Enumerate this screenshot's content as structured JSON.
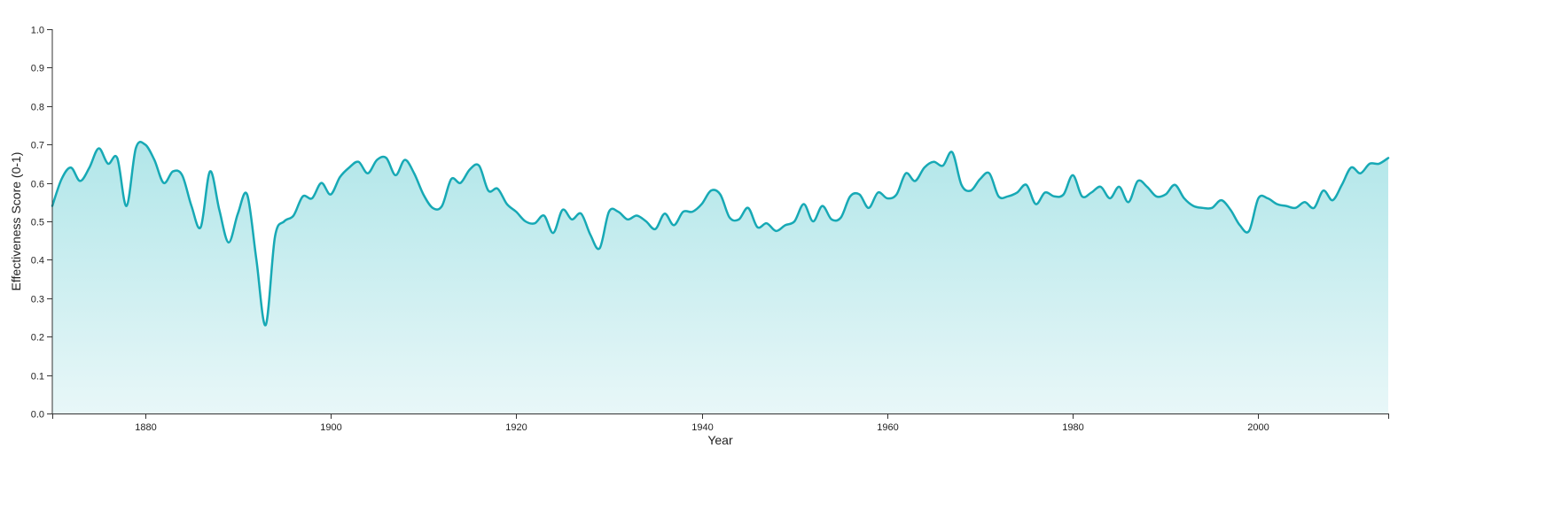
{
  "chart_data": {
    "type": "area",
    "title": "",
    "xlabel": "Year",
    "ylabel": "Effectiveness Score (0-1)",
    "xlim": [
      1870,
      2014
    ],
    "ylim": [
      0,
      1
    ],
    "x_ticks": [
      "1880",
      "1900",
      "1920",
      "1940",
      "1960",
      "1980",
      "2000"
    ],
    "y_ticks": [
      "0.0",
      "0.1",
      "0.2",
      "0.3",
      "0.4",
      "0.5",
      "0.6",
      "0.7",
      "0.8",
      "0.9",
      "1.0"
    ],
    "grid": false,
    "legend": "none",
    "colors": {
      "line": "#17a9b5",
      "fill_top": "#b1e6e9",
      "fill_bottom": "#e8f7f8",
      "axis": "#333333"
    },
    "series": [
      {
        "x": [
          1870,
          1871,
          1872,
          1873,
          1874,
          1875,
          1876,
          1877,
          1878,
          1879,
          1880,
          1881,
          1882,
          1883,
          1884,
          1885,
          1886,
          1887,
          1888,
          1889,
          1890,
          1891,
          1892,
          1893,
          1894,
          1895,
          1896,
          1897,
          1898,
          1899,
          1900,
          1901,
          1902,
          1903,
          1904,
          1905,
          1906,
          1907,
          1908,
          1909,
          1910,
          1911,
          1912,
          1913,
          1914,
          1915,
          1916,
          1917,
          1918,
          1919,
          1920,
          1921,
          1922,
          1923,
          1924,
          1925,
          1926,
          1927,
          1928,
          1929,
          1930,
          1931,
          1932,
          1933,
          1934,
          1935,
          1936,
          1937,
          1938,
          1939,
          1940,
          1941,
          1942,
          1943,
          1944,
          1945,
          1946,
          1947,
          1948,
          1949,
          1950,
          1951,
          1952,
          1953,
          1954,
          1955,
          1956,
          1957,
          1958,
          1959,
          1960,
          1961,
          1962,
          1963,
          1964,
          1965,
          1966,
          1967,
          1968,
          1969,
          1970,
          1971,
          1972,
          1973,
          1974,
          1975,
          1976,
          1977,
          1978,
          1979,
          1980,
          1981,
          1982,
          1983,
          1984,
          1985,
          1986,
          1987,
          1988,
          1989,
          1990,
          1991,
          1992,
          1993,
          1994,
          1995,
          1996,
          1997,
          1998,
          1999,
          2000,
          2001,
          2002,
          2003,
          2004,
          2005,
          2006,
          2007,
          2008,
          2009,
          2010,
          2011,
          2012,
          2013,
          2014
        ],
        "values": [
          0.54,
          0.61,
          0.64,
          0.605,
          0.64,
          0.69,
          0.65,
          0.665,
          0.54,
          0.69,
          0.7,
          0.66,
          0.6,
          0.63,
          0.62,
          0.54,
          0.485,
          0.63,
          0.53,
          0.445,
          0.52,
          0.57,
          0.4,
          0.23,
          0.46,
          0.5,
          0.515,
          0.565,
          0.56,
          0.6,
          0.57,
          0.615,
          0.64,
          0.655,
          0.625,
          0.66,
          0.665,
          0.62,
          0.66,
          0.625,
          0.57,
          0.535,
          0.54,
          0.61,
          0.6,
          0.635,
          0.645,
          0.58,
          0.585,
          0.545,
          0.525,
          0.5,
          0.495,
          0.515,
          0.47,
          0.53,
          0.505,
          0.52,
          0.465,
          0.43,
          0.525,
          0.525,
          0.505,
          0.515,
          0.5,
          0.48,
          0.52,
          0.49,
          0.525,
          0.525,
          0.545,
          0.58,
          0.57,
          0.51,
          0.505,
          0.535,
          0.485,
          0.495,
          0.475,
          0.49,
          0.5,
          0.545,
          0.5,
          0.54,
          0.505,
          0.51,
          0.565,
          0.57,
          0.535,
          0.575,
          0.56,
          0.57,
          0.625,
          0.605,
          0.64,
          0.655,
          0.645,
          0.68,
          0.595,
          0.58,
          0.61,
          0.625,
          0.565,
          0.565,
          0.575,
          0.595,
          0.545,
          0.575,
          0.565,
          0.57,
          0.62,
          0.565,
          0.575,
          0.59,
          0.56,
          0.59,
          0.55,
          0.605,
          0.59,
          0.565,
          0.57,
          0.595,
          0.56,
          0.54,
          0.535,
          0.535,
          0.555,
          0.53,
          0.49,
          0.475,
          0.56,
          0.56,
          0.545,
          0.54,
          0.535,
          0.55,
          0.535,
          0.58,
          0.555,
          0.595,
          0.64,
          0.625,
          0.65,
          0.65,
          0.665
        ]
      }
    ]
  }
}
